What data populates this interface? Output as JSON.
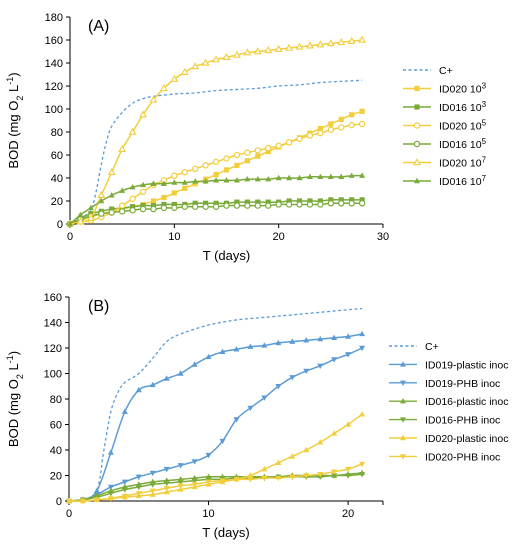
{
  "chart_data": [
    {
      "type": "line",
      "panel_label": "(A)",
      "xlabel": "T (days)",
      "ylabel": "BOD (mg O₂ L⁻¹)",
      "xlim": [
        0,
        30
      ],
      "ylim": [
        0,
        180
      ],
      "xticks": [
        0,
        10,
        20,
        30
      ],
      "yticks": [
        0,
        20,
        40,
        60,
        80,
        100,
        120,
        140,
        160,
        180
      ],
      "grid": false,
      "legend_position": "right",
      "series": [
        {
          "name": "C+",
          "color": "#5b9bd5",
          "marker": "none",
          "dashed": true,
          "x": [
            0,
            1,
            2,
            2.5,
            3,
            3.5,
            4,
            5,
            6,
            7,
            8,
            10,
            12,
            14,
            16,
            18,
            20,
            22,
            24,
            26,
            28
          ],
          "y": [
            0,
            5,
            12,
            28,
            52,
            72,
            85,
            97,
            105,
            109,
            111,
            113,
            114,
            116,
            117,
            118,
            120,
            121,
            123,
            124,
            125
          ]
        },
        {
          "name": "ID020 10³",
          "color": "#f2cd3c",
          "marker": "square-filled",
          "x": [
            0,
            1,
            2,
            3,
            4,
            5,
            6,
            7,
            8,
            9,
            10,
            11,
            12,
            13,
            14,
            15,
            16,
            17,
            18,
            19,
            20,
            21,
            22,
            23,
            24,
            25,
            26,
            27,
            28
          ],
          "y": [
            0,
            3,
            6,
            9,
            11,
            13,
            15,
            17,
            20,
            23,
            27,
            31,
            35,
            39,
            43,
            47,
            51,
            55,
            59,
            63,
            67,
            71,
            75,
            79,
            83,
            87,
            91,
            95,
            98
          ]
        },
        {
          "name": "ID016 10³",
          "color": "#7aab3a",
          "marker": "square-filled",
          "x": [
            0,
            1,
            2,
            3,
            4,
            5,
            6,
            7,
            8,
            9,
            10,
            11,
            12,
            13,
            14,
            15,
            16,
            17,
            18,
            19,
            20,
            21,
            22,
            23,
            24,
            25,
            26,
            27,
            28
          ],
          "y": [
            0,
            5,
            9,
            11,
            13,
            14,
            15,
            16,
            16,
            17,
            17,
            17,
            18,
            18,
            18,
            18,
            19,
            19,
            19,
            19,
            19,
            20,
            20,
            20,
            20,
            21,
            21,
            21,
            21
          ]
        },
        {
          "name": "ID020 10⁵",
          "color": "#f2cd3c",
          "marker": "circle-open",
          "x": [
            0,
            1,
            2,
            3,
            4,
            5,
            6,
            7,
            8,
            9,
            10,
            11,
            12,
            13,
            14,
            15,
            16,
            17,
            18,
            19,
            20,
            21,
            22,
            23,
            24,
            25,
            26,
            27,
            28
          ],
          "y": [
            0,
            2,
            3,
            6,
            10,
            16,
            22,
            28,
            34,
            38,
            42,
            45,
            48,
            51,
            54,
            57,
            60,
            62,
            64,
            66,
            68,
            71,
            74,
            77,
            79,
            82,
            84,
            86,
            87
          ]
        },
        {
          "name": "ID016 10⁵",
          "color": "#7aab3a",
          "marker": "circle-open",
          "x": [
            0,
            1,
            2,
            3,
            4,
            5,
            6,
            7,
            8,
            9,
            10,
            11,
            12,
            13,
            14,
            15,
            16,
            17,
            18,
            19,
            20,
            21,
            22,
            23,
            24,
            25,
            26,
            27,
            28
          ],
          "y": [
            0,
            4,
            7,
            9,
            10,
            11,
            12,
            13,
            13,
            14,
            14,
            15,
            15,
            15,
            15,
            16,
            16,
            16,
            16,
            16,
            17,
            17,
            17,
            17,
            17,
            18,
            18,
            18,
            18
          ]
        },
        {
          "name": "ID020 10⁷",
          "color": "#f2cd3c",
          "marker": "triangle-open",
          "x": [
            0,
            1,
            2,
            3,
            4,
            5,
            6,
            7,
            8,
            9,
            10,
            11,
            12,
            13,
            14,
            15,
            16,
            17,
            18,
            19,
            20,
            21,
            22,
            23,
            24,
            25,
            26,
            27,
            28
          ],
          "y": [
            0,
            2,
            5,
            25,
            45,
            65,
            80,
            95,
            108,
            118,
            126,
            132,
            137,
            140,
            143,
            145,
            147,
            149,
            150,
            151,
            152,
            153,
            154,
            155,
            156,
            157,
            158,
            159,
            160
          ]
        },
        {
          "name": "ID016 10⁷",
          "color": "#7aab3a",
          "marker": "triangle-filled",
          "x": [
            0,
            1,
            2,
            3,
            4,
            5,
            6,
            7,
            8,
            9,
            10,
            11,
            12,
            13,
            14,
            15,
            16,
            17,
            18,
            19,
            20,
            21,
            22,
            23,
            24,
            25,
            26,
            27,
            28
          ],
          "y": [
            0,
            8,
            14,
            20,
            25,
            29,
            32,
            34,
            35,
            35,
            36,
            36,
            37,
            37,
            38,
            38,
            38,
            39,
            39,
            39,
            40,
            40,
            40,
            41,
            41,
            41,
            41,
            42,
            42
          ]
        }
      ]
    },
    {
      "type": "line",
      "panel_label": "(B)",
      "xlabel": "T (days)",
      "ylabel": "BOD (mg O₂ L⁻¹)",
      "xlim": [
        0,
        22.5
      ],
      "ylim": [
        0,
        160
      ],
      "xticks": [
        0,
        10,
        20
      ],
      "yticks": [
        0,
        20,
        40,
        60,
        80,
        100,
        120,
        140,
        160
      ],
      "grid": false,
      "legend_position": "right",
      "series": [
        {
          "name": "C+",
          "color": "#5b9bd5",
          "marker": "none",
          "dashed": true,
          "x": [
            0,
            1,
            2,
            2.5,
            3,
            3.5,
            4,
            5,
            6,
            7,
            8,
            10,
            12,
            14,
            16,
            18,
            20,
            21
          ],
          "y": [
            0,
            1,
            8,
            40,
            70,
            85,
            93,
            100,
            112,
            125,
            131,
            138,
            142,
            144,
            146,
            148,
            150,
            151
          ]
        },
        {
          "name": "ID019-plastic inoc",
          "color": "#5b9bd5",
          "marker": "triangle-up",
          "x": [
            0,
            1,
            2,
            3,
            4,
            5,
            6,
            7,
            8,
            9,
            10,
            11,
            12,
            13,
            14,
            15,
            16,
            17,
            18,
            19,
            20,
            21
          ],
          "y": [
            0,
            1,
            8,
            38,
            70,
            87,
            91,
            96,
            100,
            107,
            113,
            117,
            119,
            121,
            122,
            124,
            125,
            126,
            127,
            128,
            129,
            131
          ]
        },
        {
          "name": "ID019-PHB inoc",
          "color": "#5b9bd5",
          "marker": "triangle-down",
          "x": [
            0,
            1,
            2,
            3,
            4,
            5,
            6,
            7,
            8,
            9,
            10,
            11,
            12,
            13,
            14,
            15,
            16,
            17,
            18,
            19,
            20,
            21
          ],
          "y": [
            0,
            1,
            5,
            11,
            15,
            19,
            22,
            25,
            28,
            31,
            36,
            47,
            64,
            73,
            81,
            90,
            97,
            102,
            106,
            111,
            115,
            120
          ]
        },
        {
          "name": "ID016-plastic inoc",
          "color": "#7aab3a",
          "marker": "triangle-up",
          "x": [
            0,
            1,
            2,
            3,
            4,
            5,
            6,
            7,
            8,
            9,
            10,
            11,
            12,
            13,
            14,
            15,
            16,
            17,
            18,
            19,
            20,
            21
          ],
          "y": [
            0,
            1,
            4,
            8,
            11,
            13,
            15,
            16,
            17,
            18,
            19,
            19,
            19,
            19,
            19,
            19,
            20,
            20,
            20,
            20,
            21,
            22
          ]
        },
        {
          "name": "ID016-PHB inoc",
          "color": "#7aab3a",
          "marker": "triangle-down",
          "x": [
            0,
            1,
            2,
            3,
            4,
            5,
            6,
            7,
            8,
            9,
            10,
            11,
            12,
            13,
            14,
            15,
            16,
            17,
            18,
            19,
            20,
            21
          ],
          "y": [
            0,
            1,
            3,
            6,
            9,
            11,
            13,
            14,
            15,
            16,
            17,
            17,
            18,
            18,
            18,
            19,
            19,
            19,
            19,
            20,
            20,
            21
          ]
        },
        {
          "name": "ID020-plastic inoc",
          "color": "#f2cd3c",
          "marker": "triangle-up",
          "x": [
            0,
            1,
            2,
            3,
            4,
            5,
            6,
            7,
            8,
            9,
            10,
            11,
            12,
            13,
            14,
            15,
            16,
            17,
            18,
            19,
            20,
            21
          ],
          "y": [
            0,
            0,
            1,
            2,
            3,
            4,
            5,
            7,
            9,
            11,
            13,
            15,
            17,
            20,
            25,
            30,
            35,
            40,
            46,
            53,
            60,
            68
          ]
        },
        {
          "name": "ID020-PHB inoc",
          "color": "#f2cd3c",
          "marker": "triangle-down",
          "x": [
            0,
            1,
            2,
            3,
            4,
            5,
            6,
            7,
            8,
            9,
            10,
            11,
            12,
            13,
            14,
            15,
            16,
            17,
            18,
            19,
            20,
            21
          ],
          "y": [
            0,
            0,
            1,
            2,
            4,
            6,
            8,
            10,
            12,
            13,
            15,
            16,
            17,
            17,
            18,
            18,
            19,
            20,
            21,
            23,
            25,
            29
          ]
        }
      ]
    }
  ]
}
